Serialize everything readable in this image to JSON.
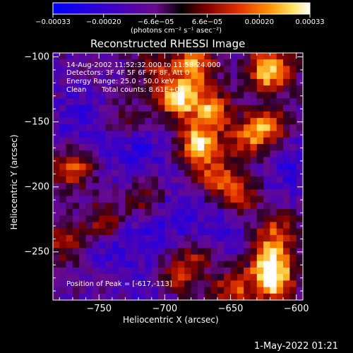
{
  "chart_data": {
    "type": "heatmap",
    "title": "Reconstructed RHESSI Image",
    "xlabel": "Heliocentric X (arcsec)",
    "ylabel": "Heliocentric Y (arcsec)",
    "xlim": [
      -785,
      -595
    ],
    "ylim": [
      -287,
      -97
    ],
    "x_ticks": [
      -750,
      -700,
      -650,
      -600
    ],
    "x_tick_labels": [
      "−750",
      "−700",
      "−650",
      "−600"
    ],
    "y_ticks": [
      -250,
      -200,
      -150,
      -100
    ],
    "y_tick_labels": [
      "−250",
      "−200",
      "−150",
      "−100"
    ],
    "colorbar": {
      "range": [
        -0.00033,
        0.00033
      ],
      "tick_values": [
        -0.00033,
        -0.0002,
        -6.6e-05,
        6.6e-05,
        0.0002,
        0.00033
      ],
      "tick_labels": [
        "−0.00033",
        "−0.00020",
        "−6.6e−05",
        "6.6e−05",
        "0.00020",
        "0.00033"
      ],
      "units_label": "(photons cm⁻² s⁻¹ asec⁻²)"
    },
    "annotations": {
      "time_range": "14-Aug-2002 11:52:32.000 to 11:58:24.000",
      "detectors": "Detectors: 3F 4F 5F 6F 7F 8F, Att 0",
      "energy": "Energy Range: 25.0 - 50.0 keV",
      "clean_label": "Clean",
      "total_counts": "Total counts: 8.61E+03",
      "peak": "Position of Peak = [-617,-113]"
    },
    "hotspots": [
      {
        "x": -620,
        "y": -110,
        "intensity": 1.0
      },
      {
        "x": -677,
        "y": -106,
        "intensity": 0.78
      },
      {
        "x": -690,
        "y": -132,
        "intensity": 0.85
      },
      {
        "x": -665,
        "y": -140,
        "intensity": 0.72
      },
      {
        "x": -674,
        "y": -167,
        "intensity": 0.95
      },
      {
        "x": -637,
        "y": -163,
        "intensity": 0.55
      },
      {
        "x": -622,
        "y": -154,
        "intensity": 0.6
      },
      {
        "x": -660,
        "y": -192,
        "intensity": 0.55
      },
      {
        "x": -643,
        "y": -208,
        "intensity": 0.5
      },
      {
        "x": -770,
        "y": -186,
        "intensity": 0.6
      },
      {
        "x": -745,
        "y": -228,
        "intensity": 0.75
      },
      {
        "x": -715,
        "y": -208,
        "intensity": 0.5
      },
      {
        "x": -775,
        "y": -242,
        "intensity": 0.45
      },
      {
        "x": -615,
        "y": -235,
        "intensity": 0.55
      },
      {
        "x": -620,
        "y": -258,
        "intensity": 0.85
      },
      {
        "x": -617,
        "y": -275,
        "intensity": 0.75
      },
      {
        "x": -648,
        "y": -280,
        "intensity": 0.6
      },
      {
        "x": -692,
        "y": -270,
        "intensity": 0.55
      },
      {
        "x": -675,
        "y": -252,
        "intensity": 0.45
      },
      {
        "x": -708,
        "y": -112,
        "intensity": 0.4
      },
      {
        "x": -730,
        "y": -150,
        "intensity": 0.3
      }
    ],
    "coldspots": [
      {
        "x": -740,
        "y": -240,
        "intensity": 0.55
      },
      {
        "x": -720,
        "y": -175,
        "intensity": 0.45
      },
      {
        "x": -700,
        "y": -225,
        "intensity": 0.4
      },
      {
        "x": -765,
        "y": -150,
        "intensity": 0.35
      },
      {
        "x": -605,
        "y": -185,
        "intensity": 0.35
      },
      {
        "x": -660,
        "y": -235,
        "intensity": 0.4
      },
      {
        "x": -705,
        "y": -280,
        "intensity": 0.3
      }
    ]
  },
  "footer": {
    "timestamp": "1-May-2022 01:21"
  }
}
